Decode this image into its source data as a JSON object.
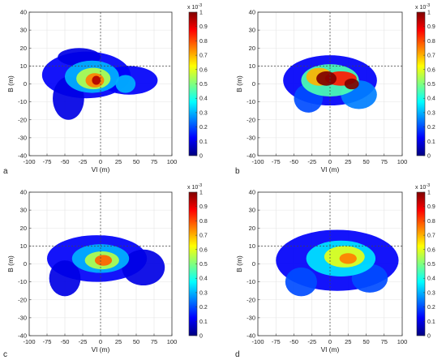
{
  "colormap": [
    "#00007f",
    "#0000ff",
    "#007fff",
    "#00ffff",
    "#7fff7f",
    "#ffff00",
    "#ff7f00",
    "#ff0000",
    "#7f0000"
  ],
  "chart_data": [
    {
      "type": "heatmap",
      "panel_label": "a",
      "xlabel": "Vl (m)",
      "ylabel": "B (m)",
      "xlim": [
        -100,
        100
      ],
      "ylim": [
        -40,
        40
      ],
      "x_ticks": [
        -100,
        -75,
        -50,
        -25,
        0,
        25,
        50,
        75,
        100
      ],
      "y_ticks": [
        -40,
        -30,
        -20,
        -10,
        0,
        10,
        20,
        30,
        40
      ],
      "grid": true,
      "reference_lines": {
        "x": 0,
        "y": 10
      },
      "colorbar": {
        "min": 0,
        "max": 1,
        "scale_label": "x 10-3",
        "ticks": [
          0,
          0.1,
          0.2,
          0.3,
          0.4,
          0.5,
          0.6,
          0.7,
          0.8,
          0.9,
          1
        ]
      },
      "blobs": [
        {
          "x": -20,
          "y": 5,
          "rx": 62,
          "ry": 13,
          "level": 0.12
        },
        {
          "x": -45,
          "y": -8,
          "rx": 22,
          "ry": 12,
          "level": 0.1
        },
        {
          "x": -30,
          "y": 15,
          "rx": 30,
          "ry": 5,
          "level": 0.1
        },
        {
          "x": 40,
          "y": 2,
          "rx": 40,
          "ry": 8,
          "level": 0.12
        },
        {
          "x": -12,
          "y": 4,
          "rx": 38,
          "ry": 9,
          "level": 0.3
        },
        {
          "x": -10,
          "y": 3,
          "rx": 24,
          "ry": 6,
          "level": 0.55
        },
        {
          "x": -8,
          "y": 2,
          "rx": 13,
          "ry": 4,
          "level": 0.75
        },
        {
          "x": -6,
          "y": 2,
          "rx": 6,
          "ry": 2.5,
          "level": 0.95
        },
        {
          "x": 35,
          "y": 0,
          "rx": 14,
          "ry": 5,
          "level": 0.3
        }
      ]
    },
    {
      "type": "heatmap",
      "panel_label": "b",
      "xlabel": "Vl (m)",
      "ylabel": "B (m)",
      "xlim": [
        -100,
        100
      ],
      "ylim": [
        -40,
        40
      ],
      "x_ticks": [
        -100,
        -75,
        -50,
        -25,
        0,
        25,
        50,
        75,
        100
      ],
      "y_ticks": [
        -40,
        -30,
        -20,
        -10,
        0,
        10,
        20,
        30,
        40
      ],
      "grid": true,
      "reference_lines": {
        "x": 0,
        "y": 10
      },
      "colorbar": {
        "min": 0,
        "max": 1,
        "scale_label": "x 10-3",
        "ticks": [
          0,
          0.1,
          0.2,
          0.3,
          0.4,
          0.5,
          0.6,
          0.7,
          0.8,
          0.9,
          1
        ]
      },
      "blobs": [
        {
          "x": 0,
          "y": 2,
          "rx": 65,
          "ry": 14,
          "level": 0.12
        },
        {
          "x": -30,
          "y": -8,
          "rx": 20,
          "ry": 8,
          "level": 0.2
        },
        {
          "x": 40,
          "y": -6,
          "rx": 25,
          "ry": 8,
          "level": 0.25
        },
        {
          "x": 0,
          "y": 2,
          "rx": 40,
          "ry": 9,
          "level": 0.45
        },
        {
          "x": -15,
          "y": 4,
          "rx": 18,
          "ry": 5,
          "level": 0.7
        },
        {
          "x": 15,
          "y": 3,
          "rx": 22,
          "ry": 4,
          "level": 0.85
        },
        {
          "x": -5,
          "y": 3,
          "rx": 14,
          "ry": 4,
          "level": 1.0
        },
        {
          "x": 30,
          "y": 0,
          "rx": 10,
          "ry": 3,
          "level": 1.0
        }
      ]
    },
    {
      "type": "heatmap",
      "panel_label": "c",
      "xlabel": "Vl (m)",
      "ylabel": "B (m)",
      "xlim": [
        -100,
        100
      ],
      "ylim": [
        -40,
        40
      ],
      "x_ticks": [
        -100,
        -75,
        -50,
        -25,
        0,
        25,
        50,
        75,
        100
      ],
      "y_ticks": [
        -40,
        -30,
        -20,
        -10,
        0,
        10,
        20,
        30,
        40
      ],
      "grid": true,
      "reference_lines": {
        "x": 0,
        "y": 10
      },
      "colorbar": {
        "min": 0,
        "max": 1,
        "scale_label": "x 10-3",
        "ticks": [
          0,
          0.1,
          0.2,
          0.3,
          0.4,
          0.5,
          0.6,
          0.7,
          0.8,
          0.9,
          1
        ]
      },
      "blobs": [
        {
          "x": -5,
          "y": 3,
          "rx": 70,
          "ry": 13,
          "level": 0.12
        },
        {
          "x": -50,
          "y": -8,
          "rx": 22,
          "ry": 10,
          "level": 0.1
        },
        {
          "x": 60,
          "y": -2,
          "rx": 30,
          "ry": 10,
          "level": 0.1
        },
        {
          "x": 0,
          "y": 3,
          "rx": 40,
          "ry": 8,
          "level": 0.3
        },
        {
          "x": 2,
          "y": 2,
          "rx": 24,
          "ry": 5,
          "level": 0.55
        },
        {
          "x": 4,
          "y": 2,
          "rx": 12,
          "ry": 3,
          "level": 0.78
        }
      ]
    },
    {
      "type": "heatmap",
      "panel_label": "d",
      "xlabel": "Vl (m)",
      "ylabel": "B (m)",
      "xlim": [
        -100,
        100
      ],
      "ylim": [
        -40,
        40
      ],
      "x_ticks": [
        -100,
        -75,
        -50,
        -25,
        0,
        25,
        50,
        75,
        100
      ],
      "y_ticks": [
        -40,
        -30,
        -20,
        -10,
        0,
        10,
        20,
        30,
        40
      ],
      "grid": true,
      "reference_lines": {
        "x": 0,
        "y": 10
      },
      "colorbar": {
        "min": 0,
        "max": 1,
        "scale_label": "x 10-3",
        "ticks": [
          0,
          0.1,
          0.2,
          0.3,
          0.4,
          0.5,
          0.6,
          0.7,
          0.8,
          0.9,
          1
        ]
      },
      "blobs": [
        {
          "x": 10,
          "y": 2,
          "rx": 85,
          "ry": 17,
          "level": 0.12
        },
        {
          "x": -40,
          "y": -10,
          "rx": 22,
          "ry": 8,
          "level": 0.2
        },
        {
          "x": 55,
          "y": -8,
          "rx": 25,
          "ry": 8,
          "level": 0.2
        },
        {
          "x": 15,
          "y": 3,
          "rx": 48,
          "ry": 10,
          "level": 0.35
        },
        {
          "x": 20,
          "y": 4,
          "rx": 28,
          "ry": 6,
          "level": 0.6
        },
        {
          "x": 25,
          "y": 3,
          "rx": 12,
          "ry": 3,
          "level": 0.75
        }
      ]
    }
  ]
}
